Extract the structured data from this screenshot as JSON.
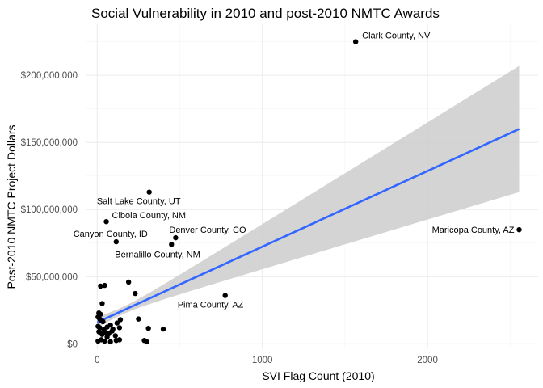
{
  "chart_data": {
    "type": "scatter",
    "title": "Social Vulnerability in 2010 and post-2010 NMTC Awards",
    "xlabel": "SVI Flag Count (2010)",
    "ylabel": "Post-2010 NMTC Project Dollars",
    "xlim": [
      -70,
      2670
    ],
    "ylim": [
      -4000000,
      238000000
    ],
    "x_ticks": [
      0,
      1000,
      2000
    ],
    "x_tick_labels": [
      "0",
      "1000",
      "2000"
    ],
    "y_ticks": [
      0,
      50000000,
      100000000,
      150000000,
      200000000
    ],
    "y_tick_labels": [
      "$0",
      "$50,000,000",
      "$100,000,000",
      "$150,000,000",
      "$200,000,000"
    ],
    "grid": true,
    "legend": "none",
    "points": [
      {
        "x": 1565,
        "y": 225000000,
        "label": "Clark County, NV"
      },
      {
        "x": 2555,
        "y": 85000000,
        "label": "Maricopa County, AZ"
      },
      {
        "x": 315,
        "y": 113000000,
        "label": "Salt Lake County, UT"
      },
      {
        "x": 55,
        "y": 91000000,
        "label": "Cibola County, NM"
      },
      {
        "x": 115,
        "y": 76000000,
        "label": "Canyon County, ID"
      },
      {
        "x": 475,
        "y": 79000000,
        "label": "Denver County, CO"
      },
      {
        "x": 450,
        "y": 74000000,
        "label": "Bernalillo County, NM"
      },
      {
        "x": 775,
        "y": 36000000,
        "label": "Pima County, AZ"
      },
      {
        "x": 20,
        "y": 43000000
      },
      {
        "x": 45,
        "y": 43500000
      },
      {
        "x": 190,
        "y": 46000000
      },
      {
        "x": 230,
        "y": 37500000
      },
      {
        "x": 30,
        "y": 30000000
      },
      {
        "x": 10,
        "y": 23000000
      },
      {
        "x": 20,
        "y": 22000000
      },
      {
        "x": 5,
        "y": 20000000
      },
      {
        "x": 15,
        "y": 18500000
      },
      {
        "x": 25,
        "y": 17500000
      },
      {
        "x": 35,
        "y": 16500000
      },
      {
        "x": 80,
        "y": 14000000
      },
      {
        "x": 140,
        "y": 18000000
      },
      {
        "x": 250,
        "y": 18500000
      },
      {
        "x": 5,
        "y": 13000000
      },
      {
        "x": 15,
        "y": 12000000
      },
      {
        "x": 40,
        "y": 10500000
      },
      {
        "x": 60,
        "y": 12500000
      },
      {
        "x": 95,
        "y": 11000000
      },
      {
        "x": 120,
        "y": 15500000
      },
      {
        "x": 135,
        "y": 12000000
      },
      {
        "x": 310,
        "y": 11500000
      },
      {
        "x": 400,
        "y": 11000000
      },
      {
        "x": 10,
        "y": 9000000
      },
      {
        "x": 20,
        "y": 8000000
      },
      {
        "x": 30,
        "y": 7000000
      },
      {
        "x": 50,
        "y": 8500000
      },
      {
        "x": 70,
        "y": 7500000
      },
      {
        "x": 90,
        "y": 9500000
      },
      {
        "x": 60,
        "y": 5000000
      },
      {
        "x": 110,
        "y": 6000000
      },
      {
        "x": 25,
        "y": 3000000
      },
      {
        "x": 45,
        "y": 2000000
      },
      {
        "x": 5,
        "y": 2000000
      },
      {
        "x": 80,
        "y": 1500000
      },
      {
        "x": 115,
        "y": 2500000
      },
      {
        "x": 135,
        "y": 3000000
      },
      {
        "x": 285,
        "y": 2500000
      },
      {
        "x": 300,
        "y": 1500000
      }
    ],
    "trend": {
      "type": "linear",
      "color": "#3366ff",
      "band_color": "#cccccc",
      "x_range": [
        0,
        2555
      ],
      "fit_at_range": [
        16000000,
        160000000
      ],
      "band_at_range_lower": [
        12000000,
        113000000
      ],
      "band_at_range_upper": [
        20000000,
        207000000
      ],
      "band_at_x0_lower": 12000000,
      "band_at_x0_upper": 20000000,
      "x0": 150
    }
  }
}
